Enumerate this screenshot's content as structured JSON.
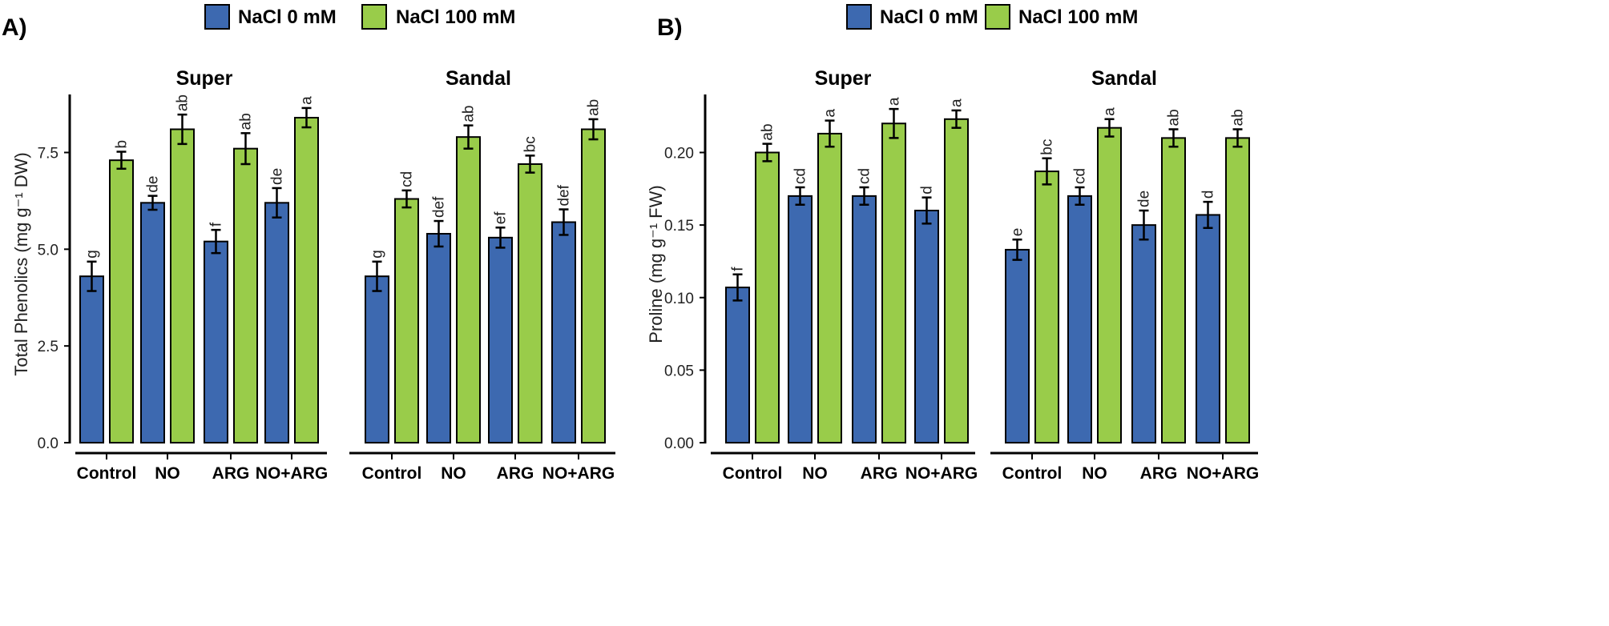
{
  "colors": {
    "nacl0": "#3d69b0",
    "nacl100": "#99cc4a",
    "axis": "#000000"
  },
  "legend": {
    "items": [
      {
        "label": "NaCl 0 mM",
        "color": "#3d69b0"
      },
      {
        "label": "NaCl 100 mM",
        "color": "#99cc4a"
      }
    ]
  },
  "chart_data": [
    {
      "panel": "A)",
      "type": "bar",
      "ylabel": "Total Phenolics (mg g⁻¹ DW)",
      "ylim": [
        0,
        9
      ],
      "yticks": [
        "0.0",
        "2.5",
        "5.0",
        "7.5"
      ],
      "categories": [
        "Control",
        "NO",
        "ARG",
        "NO+ARG"
      ],
      "facets": [
        {
          "title": "Super",
          "series": [
            {
              "name": "NaCl 0 mM",
              "values": [
                4.3,
                6.2,
                5.2,
                6.2
              ],
              "errors": [
                0.38,
                0.18,
                0.3,
                0.38
              ],
              "letters": [
                "g",
                "de",
                "f",
                "de"
              ]
            },
            {
              "name": "NaCl 100 mM",
              "values": [
                7.3,
                8.1,
                7.6,
                8.4
              ],
              "errors": [
                0.22,
                0.38,
                0.4,
                0.25
              ],
              "letters": [
                "b",
                "ab",
                "ab",
                "a"
              ]
            }
          ]
        },
        {
          "title": "Sandal",
          "series": [
            {
              "name": "NaCl 0 mM",
              "values": [
                4.3,
                5.4,
                5.3,
                5.7
              ],
              "errors": [
                0.38,
                0.33,
                0.26,
                0.33
              ],
              "letters": [
                "g",
                "def",
                "ef",
                "def"
              ]
            },
            {
              "name": "NaCl 100 mM",
              "values": [
                6.3,
                7.9,
                7.2,
                8.1
              ],
              "errors": [
                0.22,
                0.3,
                0.22,
                0.26
              ],
              "letters": [
                "cd",
                "ab",
                "bc",
                "ab"
              ]
            }
          ]
        }
      ]
    },
    {
      "panel": "B)",
      "type": "bar",
      "ylabel": "Proline (mg g⁻¹ FW)",
      "ylim": [
        0,
        0.24
      ],
      "yticks": [
        "0.00",
        "0.05",
        "0.10",
        "0.15",
        "0.20"
      ],
      "categories": [
        "Control",
        "NO",
        "ARG",
        "NO+ARG"
      ],
      "facets": [
        {
          "title": "Super",
          "series": [
            {
              "name": "NaCl 0 mM",
              "values": [
                0.107,
                0.17,
                0.17,
                0.16
              ],
              "errors": [
                0.009,
                0.006,
                0.006,
                0.009
              ],
              "letters": [
                "f",
                "cd",
                "cd",
                "d"
              ]
            },
            {
              "name": "NaCl 100 mM",
              "values": [
                0.2,
                0.213,
                0.22,
                0.223
              ],
              "errors": [
                0.006,
                0.009,
                0.01,
                0.006
              ],
              "letters": [
                "ab",
                "a",
                "a",
                "a"
              ]
            }
          ]
        },
        {
          "title": "Sandal",
          "series": [
            {
              "name": "NaCl 0 mM",
              "values": [
                0.133,
                0.17,
                0.15,
                0.157
              ],
              "errors": [
                0.007,
                0.006,
                0.01,
                0.009
              ],
              "letters": [
                "e",
                "cd",
                "de",
                "d"
              ]
            },
            {
              "name": "NaCl 100 mM",
              "values": [
                0.187,
                0.217,
                0.21,
                0.21
              ],
              "errors": [
                0.009,
                0.006,
                0.006,
                0.006
              ],
              "letters": [
                "bc",
                "a",
                "ab",
                "ab"
              ]
            }
          ]
        }
      ]
    }
  ]
}
